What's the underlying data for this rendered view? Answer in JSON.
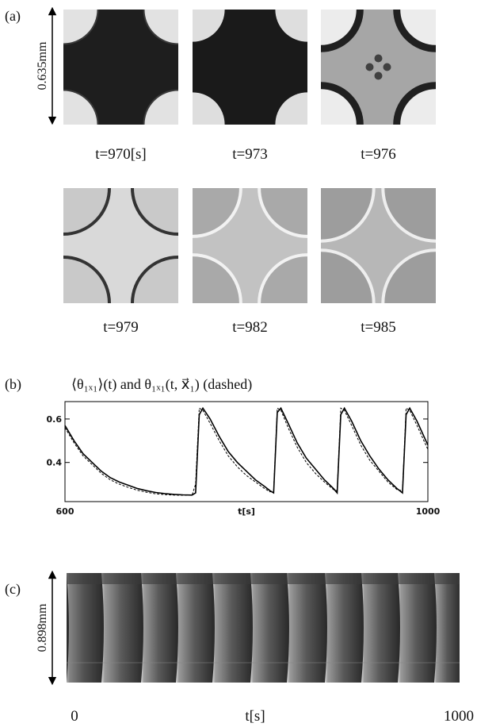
{
  "panel_a": {
    "label": "(a)",
    "scale_label": "0.635mm",
    "captions": [
      "t=970[s]",
      "t=973",
      "t=976",
      "t=979",
      "t=982",
      "t=985"
    ]
  },
  "chart_data": {
    "type": "line",
    "label": "(b)",
    "title": "⟨θ₁ₓ₁⟩(t) and θ₁ₓ₁(t, x⃗₁) (dashed)",
    "xlabel": "t[s]",
    "x": [
      600,
      610,
      620,
      630,
      640,
      650,
      660,
      670,
      680,
      690,
      700,
      710,
      720,
      730,
      740,
      744,
      748,
      752,
      760,
      770,
      780,
      790,
      800,
      810,
      820,
      826,
      830,
      834,
      838,
      846,
      856,
      866,
      876,
      886,
      896,
      900,
      904,
      908,
      916,
      926,
      936,
      946,
      956,
      966,
      972,
      976,
      980,
      988,
      1000
    ],
    "series": [
      {
        "style": "solid",
        "color": "#000000",
        "values": [
          0.57,
          0.5,
          0.44,
          0.4,
          0.36,
          0.33,
          0.31,
          0.295,
          0.28,
          0.27,
          0.262,
          0.257,
          0.253,
          0.251,
          0.25,
          0.26,
          0.62,
          0.65,
          0.6,
          0.52,
          0.45,
          0.4,
          0.36,
          0.32,
          0.29,
          0.27,
          0.26,
          0.63,
          0.65,
          0.58,
          0.49,
          0.42,
          0.37,
          0.32,
          0.28,
          0.26,
          0.62,
          0.65,
          0.59,
          0.5,
          0.43,
          0.37,
          0.32,
          0.28,
          0.26,
          0.62,
          0.65,
          0.59,
          0.48
        ]
      },
      {
        "style": "dashed",
        "color": "#000000",
        "values": [
          0.56,
          0.49,
          0.43,
          0.39,
          0.35,
          0.32,
          0.3,
          0.285,
          0.272,
          0.263,
          0.256,
          0.252,
          0.25,
          0.249,
          0.249,
          0.3,
          0.65,
          0.64,
          0.58,
          0.5,
          0.43,
          0.38,
          0.34,
          0.31,
          0.28,
          0.265,
          0.27,
          0.65,
          0.64,
          0.56,
          0.47,
          0.4,
          0.35,
          0.31,
          0.275,
          0.27,
          0.65,
          0.64,
          0.57,
          0.48,
          0.41,
          0.36,
          0.31,
          0.275,
          0.27,
          0.65,
          0.64,
          0.57,
          0.46
        ]
      }
    ],
    "xlim": [
      600,
      1000
    ],
    "ylim": [
      0.22,
      0.68
    ],
    "xticks": [
      600,
      1000
    ],
    "yticks": [
      0.4,
      0.6
    ]
  },
  "panel_c": {
    "label": "(c)",
    "scale_label": "0.898mm",
    "x_labels": [
      "0",
      "t[s]",
      "1000"
    ]
  }
}
